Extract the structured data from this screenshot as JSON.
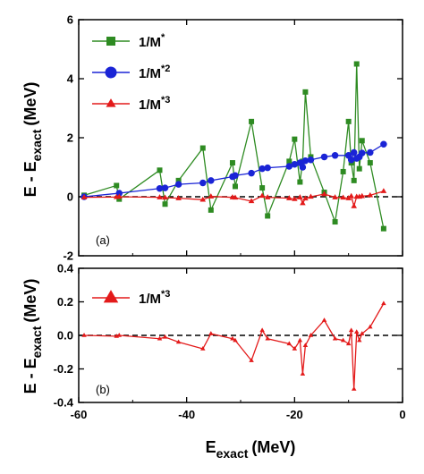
{
  "chart_data": [
    {
      "type": "line",
      "panel_label": "(a)",
      "ylabel": "E - E",
      "ylabel_sub": "exact",
      "ylabel_unit": "(MeV)",
      "xlim": [
        -60,
        0
      ],
      "ylim": [
        -2,
        6
      ],
      "xticks": [
        -60,
        -40,
        -20,
        0
      ],
      "yticks": [
        -2,
        0,
        2,
        4,
        6
      ],
      "reference_line": 0,
      "legend_position": "top-left",
      "series": [
        {
          "name": "1/M*",
          "name_base": "1/M",
          "name_sup": "*",
          "color": "#2e8b22",
          "marker": "square",
          "x": [
            -59,
            -53,
            -52.5,
            -45,
            -44,
            -41.5,
            -37,
            -35.5,
            -31.5,
            -31,
            -28,
            -26,
            -25,
            -21,
            -20,
            -19,
            -18.5,
            -18,
            -17,
            -14.5,
            -12.5,
            -11,
            -10,
            -9.5,
            -9,
            -8.5,
            -8,
            -7.5,
            -6,
            -3.5
          ],
          "y": [
            0.05,
            0.38,
            -0.08,
            0.9,
            -0.25,
            0.55,
            1.65,
            -0.45,
            1.15,
            0.35,
            2.55,
            0.3,
            -0.65,
            1.2,
            1.95,
            0.5,
            1.2,
            3.55,
            1.35,
            0.15,
            -0.85,
            0.85,
            2.55,
            1.15,
            0.55,
            4.5,
            0.95,
            1.9,
            1.15,
            -1.08
          ]
        },
        {
          "name": "1/M*2",
          "name_base": "1/M",
          "name_sup": "*2",
          "color": "#1a24d6",
          "marker": "circle",
          "x": [
            -59,
            -52.5,
            -45,
            -44,
            -41.5,
            -37,
            -35.5,
            -31.5,
            -31,
            -28,
            -26,
            -25,
            -21,
            -20,
            -19,
            -18.5,
            -18,
            -17,
            -14.5,
            -12.5,
            -10,
            -9.5,
            -9,
            -8.5,
            -8,
            -7.5,
            -6,
            -3.5
          ],
          "y": [
            0.0,
            0.12,
            0.28,
            0.3,
            0.42,
            0.47,
            0.55,
            0.68,
            0.72,
            0.8,
            0.95,
            0.98,
            1.03,
            1.1,
            1.15,
            1.0,
            1.22,
            1.25,
            1.35,
            1.4,
            1.4,
            1.25,
            1.5,
            1.3,
            1.35,
            1.48,
            1.5,
            1.78
          ]
        },
        {
          "name": "1/M*3",
          "name_base": "1/M",
          "name_sup": "*3",
          "color": "#e31a1a",
          "marker": "triangle",
          "x": [
            -59,
            -53,
            -52.5,
            -45,
            -44,
            -41.5,
            -37,
            -35.5,
            -31.5,
            -31,
            -28,
            -26,
            -25,
            -21,
            -20,
            -19,
            -18.5,
            -18,
            -17,
            -14.5,
            -12.5,
            -11,
            -10,
            -9.5,
            -9,
            -8.5,
            -8,
            -7.5,
            -6,
            -3.5
          ],
          "y": [
            -0.02,
            -0.01,
            0.0,
            -0.02,
            -0.03,
            -0.05,
            -0.1,
            0.01,
            -0.02,
            -0.03,
            -0.15,
            0.03,
            -0.02,
            -0.05,
            -0.08,
            -0.02,
            -0.22,
            -0.06,
            0.0,
            0.09,
            -0.02,
            -0.03,
            -0.05,
            0.02,
            -0.32,
            0.0,
            0.0,
            0.02,
            0.05,
            0.19
          ]
        }
      ]
    },
    {
      "type": "line",
      "panel_label": "(b)",
      "ylabel": "E - E",
      "ylabel_sub": "exact",
      "ylabel_unit": "(MeV)",
      "xlabel": "E",
      "xlabel_sub": "exact",
      "xlabel_unit": "(MeV)",
      "xlim": [
        -60,
        0
      ],
      "ylim": [
        -0.4,
        0.4
      ],
      "xticks": [
        -60,
        -40,
        -20,
        0
      ],
      "yticks": [
        -0.4,
        -0.2,
        0.0,
        0.2,
        0.4
      ],
      "xtick_labels": [
        "-60",
        "-40",
        "-20",
        "0"
      ],
      "ytick_labels": [
        "-0.4",
        "-0.2",
        "0.0",
        "0.2",
        "0.4"
      ],
      "reference_line": 0,
      "legend_position": "top-left",
      "series": [
        {
          "name": "1/M*3",
          "name_base": "1/M",
          "name_sup": "*3",
          "color": "#e31a1a",
          "marker": "triangle",
          "x": [
            -59,
            -53,
            -52.5,
            -45,
            -44,
            -41.5,
            -37,
            -35.5,
            -31.5,
            -31,
            -28,
            -26,
            -25,
            -21,
            -20,
            -19,
            -18.5,
            -18,
            -17,
            -14.5,
            -12.5,
            -11,
            -10,
            -9.5,
            -9,
            -8.5,
            -8,
            -7.5,
            -6,
            -3.5
          ],
          "y": [
            0.0,
            -0.005,
            0.0,
            -0.02,
            -0.01,
            -0.04,
            -0.08,
            0.01,
            -0.02,
            -0.03,
            -0.15,
            0.03,
            -0.02,
            -0.05,
            -0.08,
            -0.03,
            -0.23,
            -0.06,
            0.0,
            0.09,
            -0.02,
            -0.03,
            -0.05,
            0.03,
            -0.32,
            0.02,
            -0.03,
            0.01,
            0.05,
            0.19
          ]
        }
      ]
    }
  ]
}
